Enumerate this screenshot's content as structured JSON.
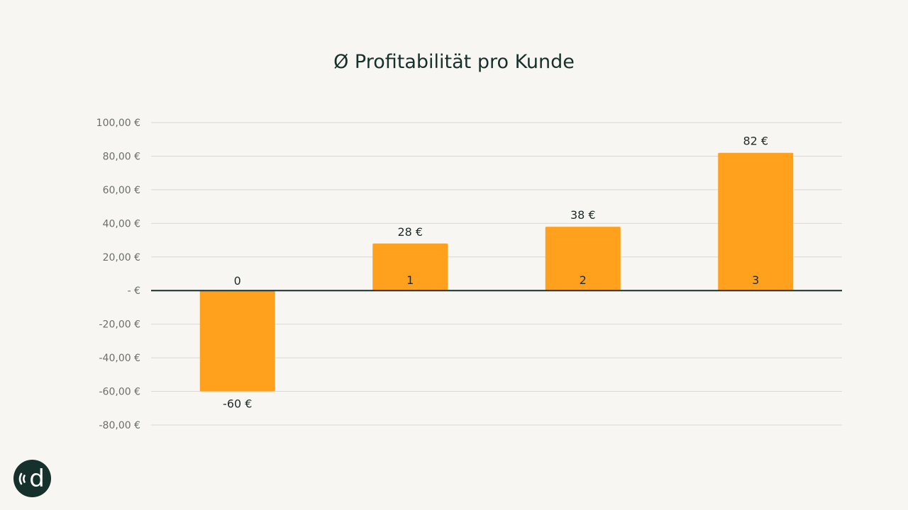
{
  "chart_data": {
    "type": "bar",
    "title": "Ø Profitabilität pro Kunde",
    "categories": [
      "0",
      "1",
      "2",
      "3"
    ],
    "values": [
      -60,
      28,
      38,
      82
    ],
    "value_labels": [
      "-60 €",
      "28 €",
      "38 €",
      "82 €"
    ],
    "xlabel": "",
    "ylabel": "",
    "ylim": [
      -80,
      100
    ],
    "y_ticks": [
      100,
      80,
      60,
      40,
      20,
      0,
      -20,
      -40,
      -60,
      -80
    ],
    "y_tick_labels": [
      "100,00 €",
      "80,00 €",
      "60,00 €",
      "40,00 €",
      "20,00 €",
      "- €",
      "-20,00 €",
      "-40,00 €",
      "-60,00 €",
      "-80,00 €"
    ],
    "grid": true,
    "legend": "none",
    "bar_color": "#ffa11c",
    "axis_color": "#16302b",
    "grid_color": "#d9d8d4",
    "text_color": "#1f2a28",
    "tick_color": "#6b6e6c",
    "background": "#f7f6f2"
  },
  "logo": {
    "icon": "brand-logo-icon",
    "text": "d",
    "color": "#16302b"
  }
}
